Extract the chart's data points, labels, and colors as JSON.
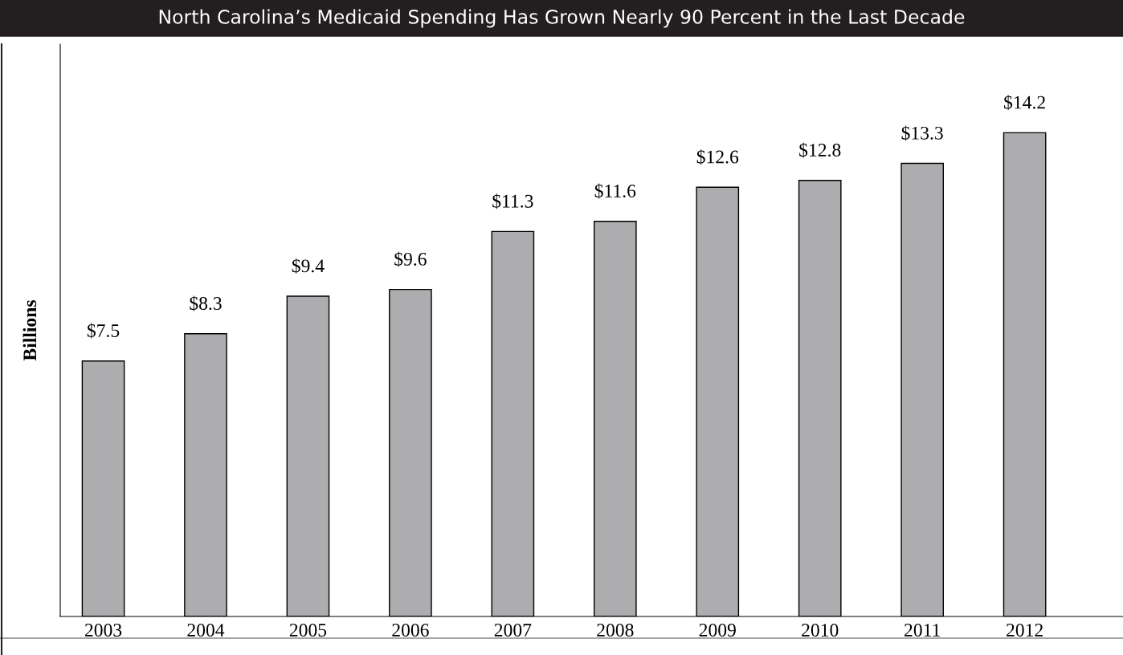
{
  "chart_data": {
    "type": "bar",
    "title": "North Carolina’s Medicaid Spending Has Grown Nearly 90 Percent in the Last Decade",
    "ylabel": "Billions",
    "categories": [
      "2003",
      "2004",
      "2005",
      "2006",
      "2007",
      "2008",
      "2009",
      "2010",
      "2011",
      "2012"
    ],
    "values": [
      7.5,
      8.3,
      9.4,
      9.6,
      11.3,
      11.6,
      12.6,
      12.8,
      13.3,
      14.2
    ],
    "value_labels": [
      "$7.5",
      "$8.3",
      "$9.4",
      "$9.6",
      "$11.3",
      "$11.6",
      "$12.6",
      "$12.8",
      "$13.3",
      "$14.2"
    ],
    "color": "#adadaf",
    "ylim": [
      0,
      16.8
    ],
    "tick_labels": "x",
    "grid": false,
    "legend": false
  }
}
